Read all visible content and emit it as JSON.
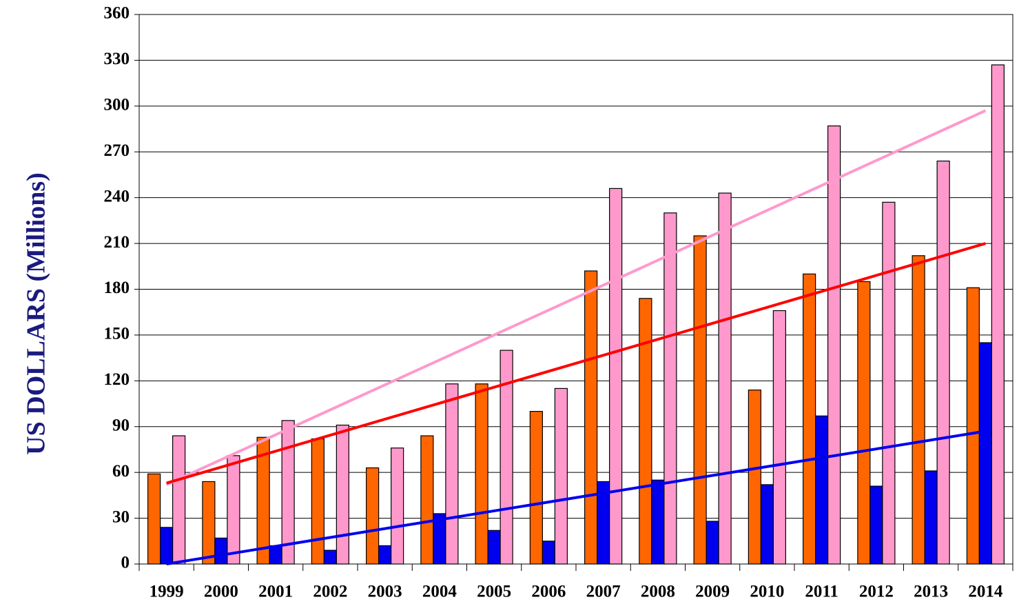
{
  "chart_data": {
    "type": "bar",
    "ylabel": "US DOLLARS (Millions)",
    "categories": [
      "1999",
      "2000",
      "2001",
      "2002",
      "2003",
      "2004",
      "2005",
      "2006",
      "2007",
      "2008",
      "2009",
      "2010",
      "2011",
      "2012",
      "2013",
      "2014"
    ],
    "series": [
      {
        "color": "#ff6600",
        "values": [
          59,
          54,
          83,
          82,
          63,
          84,
          118,
          100,
          192,
          174,
          215,
          114,
          190,
          185,
          202,
          181
        ]
      },
      {
        "color": "#0000ee",
        "values": [
          24,
          17,
          12,
          9,
          12,
          33,
          22,
          15,
          54,
          55,
          28,
          52,
          97,
          51,
          61,
          145
        ]
      },
      {
        "color": "#ff99cc",
        "values": [
          84,
          71,
          94,
          91,
          76,
          118,
          140,
          115,
          246,
          230,
          243,
          166,
          287,
          237,
          264,
          327
        ]
      }
    ],
    "trendlines": [
      {
        "color": "#ff99cc",
        "values": [
          52,
          297
        ]
      },
      {
        "color": "#ff0000",
        "values": [
          53,
          210
        ]
      },
      {
        "color": "#0000ee",
        "values": [
          0,
          87
        ]
      }
    ],
    "ylim": [
      0,
      360
    ],
    "yticks": [
      0,
      30,
      60,
      90,
      120,
      150,
      180,
      210,
      240,
      270,
      300,
      330,
      360
    ],
    "grid": true
  }
}
